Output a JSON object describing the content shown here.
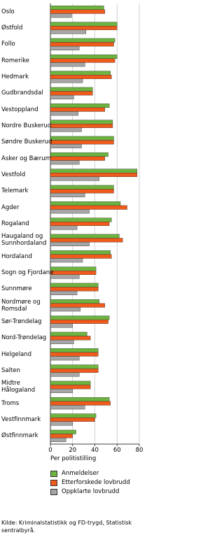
{
  "chart_data": {
    "type": "bar",
    "orientation": "horizontal",
    "categories": [
      "Oslo",
      "Østfold",
      "Follo",
      "Romerike",
      "Hedmark",
      "Gudbrandsdal",
      "Vestoppland",
      "Nordre Buskerud",
      "Søndre Buskerud",
      "Asker og Bærum",
      "Vestfold",
      "Telemark",
      "Agder",
      "Rogaland",
      "Haugaland og\nSunnhordaland",
      "Hordaland",
      "Sogn og Fjordane",
      "Sunnmøre",
      "Nordmøre og\nRomsdal",
      "Sør-Trøndelag",
      "Nord-Trøndelag",
      "Helgeland",
      "Salten",
      "Midtre\nHålogaland",
      "Troms",
      "Vestfinnmark",
      "Østfinnmark"
    ],
    "series": [
      {
        "name": "Anmeldelser",
        "color": "#6cb33f",
        "values": [
          48,
          60,
          58,
          60,
          54,
          38,
          53,
          56,
          57,
          52,
          78,
          57,
          63,
          55,
          62,
          54,
          41,
          43,
          44,
          53,
          33,
          43,
          43,
          36,
          53,
          41,
          23
        ]
      },
      {
        "name": "Etterforskede lovbrudd",
        "color": "#f05a1a",
        "values": [
          49,
          60,
          57,
          58,
          55,
          38,
          49,
          56,
          57,
          49,
          78,
          57,
          69,
          53,
          65,
          55,
          41,
          43,
          49,
          52,
          36,
          43,
          43,
          36,
          54,
          40,
          20
        ]
      },
      {
        "name": "Oppklarte lovbrudd",
        "color": "#a6a6a6",
        "values": [
          19,
          32,
          26,
          31,
          29,
          21,
          25,
          28,
          28,
          26,
          44,
          31,
          35,
          24,
          35,
          29,
          26,
          24,
          27,
          20,
          21,
          26,
          26,
          20,
          31,
          20,
          14
        ]
      }
    ],
    "xlim": [
      0,
      80
    ],
    "xticks": [
      0,
      20,
      40,
      60,
      80
    ],
    "xlabel": "Per politistilling",
    "grid": true,
    "source": "Kilde: Kriminalstatistikk og FD-trygd, Statistisk sentralbyrå."
  }
}
